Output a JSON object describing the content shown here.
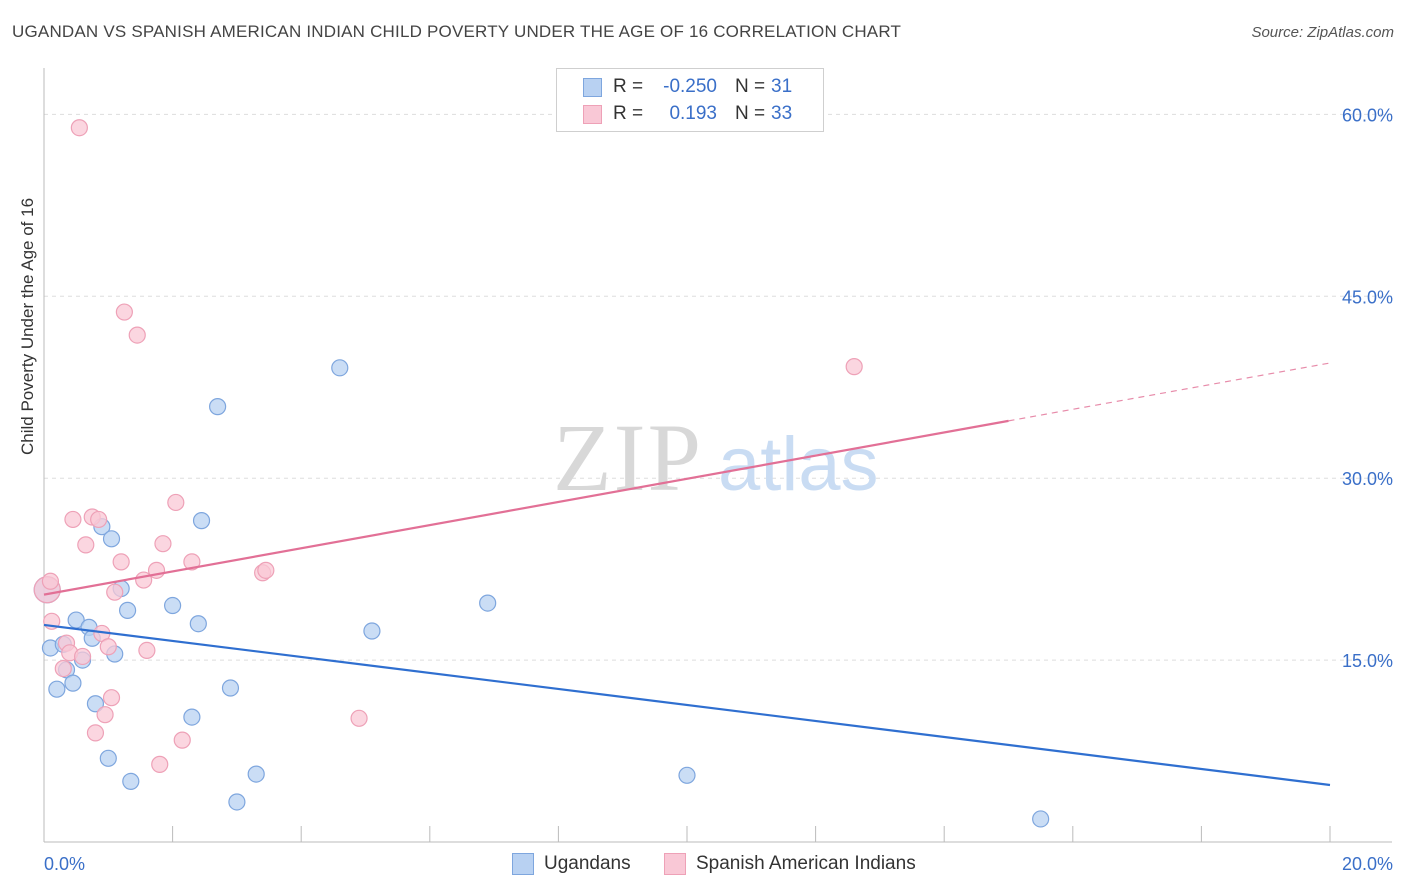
{
  "header": {
    "title": "UGANDAN VS SPANISH AMERICAN INDIAN CHILD POVERTY UNDER THE AGE OF 16 CORRELATION CHART",
    "source": "Source: ZipAtlas.com"
  },
  "watermark": {
    "zip": "ZIP",
    "atlas": "atlas"
  },
  "legend": {
    "r_label": "R =",
    "n_label": "N =",
    "rows": [
      {
        "r": "-0.250",
        "n": "31"
      },
      {
        "r": "0.193",
        "n": "33"
      }
    ]
  },
  "colors": {
    "ugandans_fill": "#b8d1f2",
    "ugandans_stroke": "#7ea6de",
    "ugandans_line": "#2f6fd0",
    "spanish_fill": "#f9c8d6",
    "spanish_stroke": "#eea1b7",
    "spanish_line": "#e27096",
    "axis_text": "#3a6fc8",
    "grid": "#dddddd"
  },
  "chart_data": {
    "type": "scatter",
    "title": "UGANDAN VS SPANISH AMERICAN INDIAN CHILD POVERTY UNDER THE AGE OF 16 CORRELATION CHART",
    "xlabel": "",
    "ylabel": "Child Poverty Under the Age of 16",
    "xlim": [
      0,
      20
    ],
    "ylim": [
      0,
      63
    ],
    "x_tick_labels": [
      {
        "value": 0,
        "label": "0.0%"
      },
      {
        "value": 20,
        "label": "20.0%"
      }
    ],
    "y_tick_labels": [
      {
        "value": 15,
        "label": "15.0%"
      },
      {
        "value": 30,
        "label": "30.0%"
      },
      {
        "value": 45,
        "label": "45.0%"
      },
      {
        "value": 60,
        "label": "60.0%"
      }
    ],
    "x_minor_ticks": [
      0,
      2,
      4,
      6,
      8,
      10,
      12,
      14,
      16,
      18,
      20
    ],
    "series": [
      {
        "name": "Ugandans",
        "r": -0.25,
        "n": 31,
        "trend": {
          "x0": 0,
          "y0": 17.9,
          "x1": 20,
          "y1": 4.7,
          "solid_until": 20
        },
        "points": [
          [
            0.05,
            20.8
          ],
          [
            0.1,
            16.0
          ],
          [
            0.2,
            12.6
          ],
          [
            0.3,
            16.3
          ],
          [
            0.35,
            14.2
          ],
          [
            0.45,
            13.1
          ],
          [
            0.5,
            18.3
          ],
          [
            0.6,
            15.0
          ],
          [
            0.7,
            17.7
          ],
          [
            0.75,
            16.8
          ],
          [
            0.8,
            11.4
          ],
          [
            0.9,
            26.0
          ],
          [
            1.0,
            6.9
          ],
          [
            1.05,
            25.0
          ],
          [
            1.1,
            15.5
          ],
          [
            1.2,
            20.9
          ],
          [
            1.3,
            19.1
          ],
          [
            1.35,
            5.0
          ],
          [
            2.0,
            19.5
          ],
          [
            2.3,
            10.3
          ],
          [
            2.4,
            18.0
          ],
          [
            2.45,
            26.5
          ],
          [
            2.7,
            35.9
          ],
          [
            2.9,
            12.7
          ],
          [
            3.0,
            3.3
          ],
          [
            3.3,
            5.6
          ],
          [
            4.6,
            39.1
          ],
          [
            5.1,
            17.4
          ],
          [
            6.9,
            19.7
          ],
          [
            10.0,
            5.5
          ],
          [
            15.5,
            1.9
          ]
        ]
      },
      {
        "name": "Spanish American Indians",
        "r": 0.193,
        "n": 33,
        "trend": {
          "x0": 0,
          "y0": 20.4,
          "x1": 20,
          "y1": 39.5,
          "solid_until": 15
        },
        "points": [
          [
            0.05,
            20.8
          ],
          [
            0.1,
            21.5
          ],
          [
            0.12,
            18.2
          ],
          [
            0.3,
            14.3
          ],
          [
            0.35,
            16.4
          ],
          [
            0.4,
            15.6
          ],
          [
            0.45,
            26.6
          ],
          [
            0.55,
            58.9
          ],
          [
            0.6,
            15.3
          ],
          [
            0.65,
            24.5
          ],
          [
            0.75,
            26.8
          ],
          [
            0.8,
            9.0
          ],
          [
            0.85,
            26.6
          ],
          [
            0.9,
            17.2
          ],
          [
            0.95,
            10.5
          ],
          [
            1.0,
            16.1
          ],
          [
            1.05,
            11.9
          ],
          [
            1.1,
            20.6
          ],
          [
            1.2,
            23.1
          ],
          [
            1.25,
            43.7
          ],
          [
            1.45,
            41.8
          ],
          [
            1.55,
            21.6
          ],
          [
            1.6,
            15.8
          ],
          [
            1.75,
            22.4
          ],
          [
            1.8,
            6.4
          ],
          [
            1.85,
            24.6
          ],
          [
            2.05,
            28.0
          ],
          [
            2.15,
            8.4
          ],
          [
            2.3,
            23.1
          ],
          [
            3.4,
            22.2
          ],
          [
            3.45,
            22.4
          ],
          [
            4.9,
            10.2
          ],
          [
            12.6,
            39.2
          ]
        ]
      }
    ],
    "legend": [
      "Ugandans",
      "Spanish American Indians"
    ]
  }
}
